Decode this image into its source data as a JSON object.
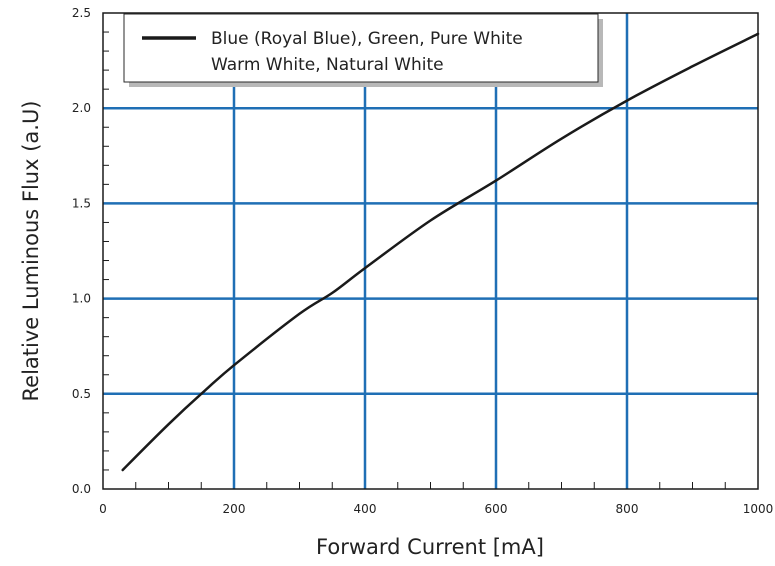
{
  "chart_data": {
    "type": "line",
    "title": "",
    "xlabel": "Forward Current [mA]",
    "ylabel": "Relative Luminous Flux (a.U)",
    "xlim": [
      0,
      1000
    ],
    "ylim": [
      0.0,
      2.5
    ],
    "x_ticks": [
      0,
      200,
      400,
      600,
      800,
      1000
    ],
    "y_ticks": [
      0.0,
      0.5,
      1.0,
      1.5,
      2.0,
      2.5
    ],
    "x_tick_labels": [
      "0",
      "200",
      "400",
      "600",
      "800",
      "1000"
    ],
    "y_tick_labels": [
      "0.0",
      "0.5",
      "1.0",
      "1.5",
      "2.0",
      "2.5"
    ],
    "grid": true,
    "grid_color": "#1f6fb5",
    "legend_position": "top-left",
    "legend": {
      "line1": "Blue (Royal Blue), Green, Pure White",
      "line2": "Warm White, Natural White"
    },
    "series": [
      {
        "name": "Blue (Royal Blue), Green, Pure White Warm White, Natural White",
        "color": "#1a1a1a",
        "x": [
          30,
          100,
          150,
          200,
          300,
          350,
          400,
          500,
          600,
          700,
          800,
          900,
          1000
        ],
        "y": [
          0.1,
          0.34,
          0.5,
          0.65,
          0.92,
          1.03,
          1.16,
          1.41,
          1.62,
          1.84,
          2.04,
          2.22,
          2.39
        ]
      }
    ]
  }
}
